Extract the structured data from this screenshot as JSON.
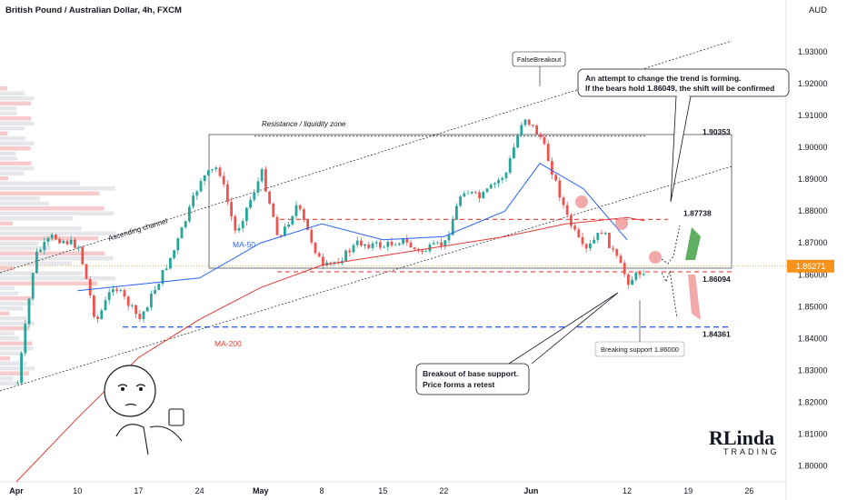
{
  "header": {
    "title": "British Pound / Australian Dollar, 4h, FXCM",
    "currency": "AUD"
  },
  "colors": {
    "up": "#26a69a",
    "down": "#ef5350",
    "ma50": "#2962ff",
    "ma200": "#e53935",
    "price_badge": "#f7931a",
    "support_blue": "#2962ff",
    "callout_border": "#131722"
  },
  "chart_data": {
    "type": "line",
    "ylim": [
      1.795,
      1.94
    ],
    "y_ticks": [
      "1.93000",
      "1.92000",
      "1.91000",
      "1.90000",
      "1.89000",
      "1.88000",
      "1.87000",
      "1.86000",
      "1.85000",
      "1.84000",
      "1.83000",
      "1.82000",
      "1.81000",
      "1.80000"
    ],
    "x_ticks": [
      "Apr",
      "10",
      "17",
      "24",
      "May",
      "8",
      "15",
      "22",
      "Jun",
      "12",
      "19",
      "26"
    ],
    "x_bold_ticks": [
      "Apr",
      "May",
      "Jun"
    ],
    "current_price": "1.86271",
    "series": [
      {
        "key": "price",
        "x": [
          "Apr 3",
          "Apr 5",
          "Apr 7",
          "Apr 10",
          "Apr 12",
          "Apr 14",
          "Apr 17",
          "Apr 19",
          "Apr 21",
          "Apr 24",
          "Apr 26",
          "Apr 28",
          "May 1",
          "May 3",
          "May 5",
          "May 8",
          "May 10",
          "May 12",
          "May 15",
          "May 17",
          "May 19",
          "May 22",
          "May 24",
          "May 26",
          "May 29",
          "May 31",
          "Jun 2",
          "Jun 5",
          "Jun 7",
          "Jun 9",
          "Jun 12",
          "Jun 14"
        ],
        "values": [
          1.826,
          1.866,
          1.872,
          1.869,
          1.845,
          1.857,
          1.846,
          1.857,
          1.868,
          1.89,
          1.894,
          1.873,
          1.892,
          1.871,
          1.882,
          1.862,
          1.865,
          1.87,
          1.869,
          1.871,
          1.867,
          1.87,
          1.887,
          1.884,
          1.892,
          1.91,
          1.903,
          1.878,
          1.867,
          1.874,
          1.858,
          1.862
        ]
      },
      {
        "name": "MA-50",
        "x": [
          "Apr 10",
          "Apr 17",
          "Apr 24",
          "May 1",
          "May 8",
          "May 15",
          "May 22",
          "May 29",
          "Jun 2",
          "Jun 7",
          "Jun 12"
        ],
        "values": [
          1.855,
          1.857,
          1.859,
          1.87,
          1.876,
          1.871,
          1.872,
          1.88,
          1.895,
          1.887,
          1.871
        ]
      },
      {
        "name": "MA-200",
        "x": [
          "Apr 3",
          "Apr 10",
          "Apr 17",
          "Apr 24",
          "May 1",
          "May 8",
          "May 15",
          "May 22",
          "May 29",
          "Jun 5",
          "Jun 12",
          "Jun 14"
        ],
        "values": [
          1.795,
          1.815,
          1.834,
          1.846,
          1.856,
          1.863,
          1.866,
          1.869,
          1.872,
          1.876,
          1.878,
          1.877
        ]
      }
    ],
    "levels": [
      {
        "label": "1.90353",
        "value": 1.90353,
        "style": "dotted"
      },
      {
        "label": "1.87738",
        "value": 1.87738,
        "style": "dashed-red"
      },
      {
        "label": "1.86094",
        "value": 1.86094,
        "style": "dashed-red"
      },
      {
        "label": "1.84361",
        "value": 1.84361,
        "style": "dashed-blue"
      }
    ],
    "annotations": {
      "resistance_zone": "Resistance / liquidity zone",
      "ascending_channel": "Ascending channel",
      "ma50_label": "MA-50",
      "ma200_label": "MA-200",
      "false_breakout": "FalseBreakout",
      "breaking_support": "Breaking support 1.86000",
      "callout_top_line1": "An attempt to change the trend is forming.",
      "callout_top_line2": "If the bears hold 1.86049, the shift will be confirmed",
      "callout_bottom_line1": "Breakout of base support.",
      "callout_bottom_line2": "Price forms a retest"
    },
    "logo_text": "RLinda TRADING"
  }
}
